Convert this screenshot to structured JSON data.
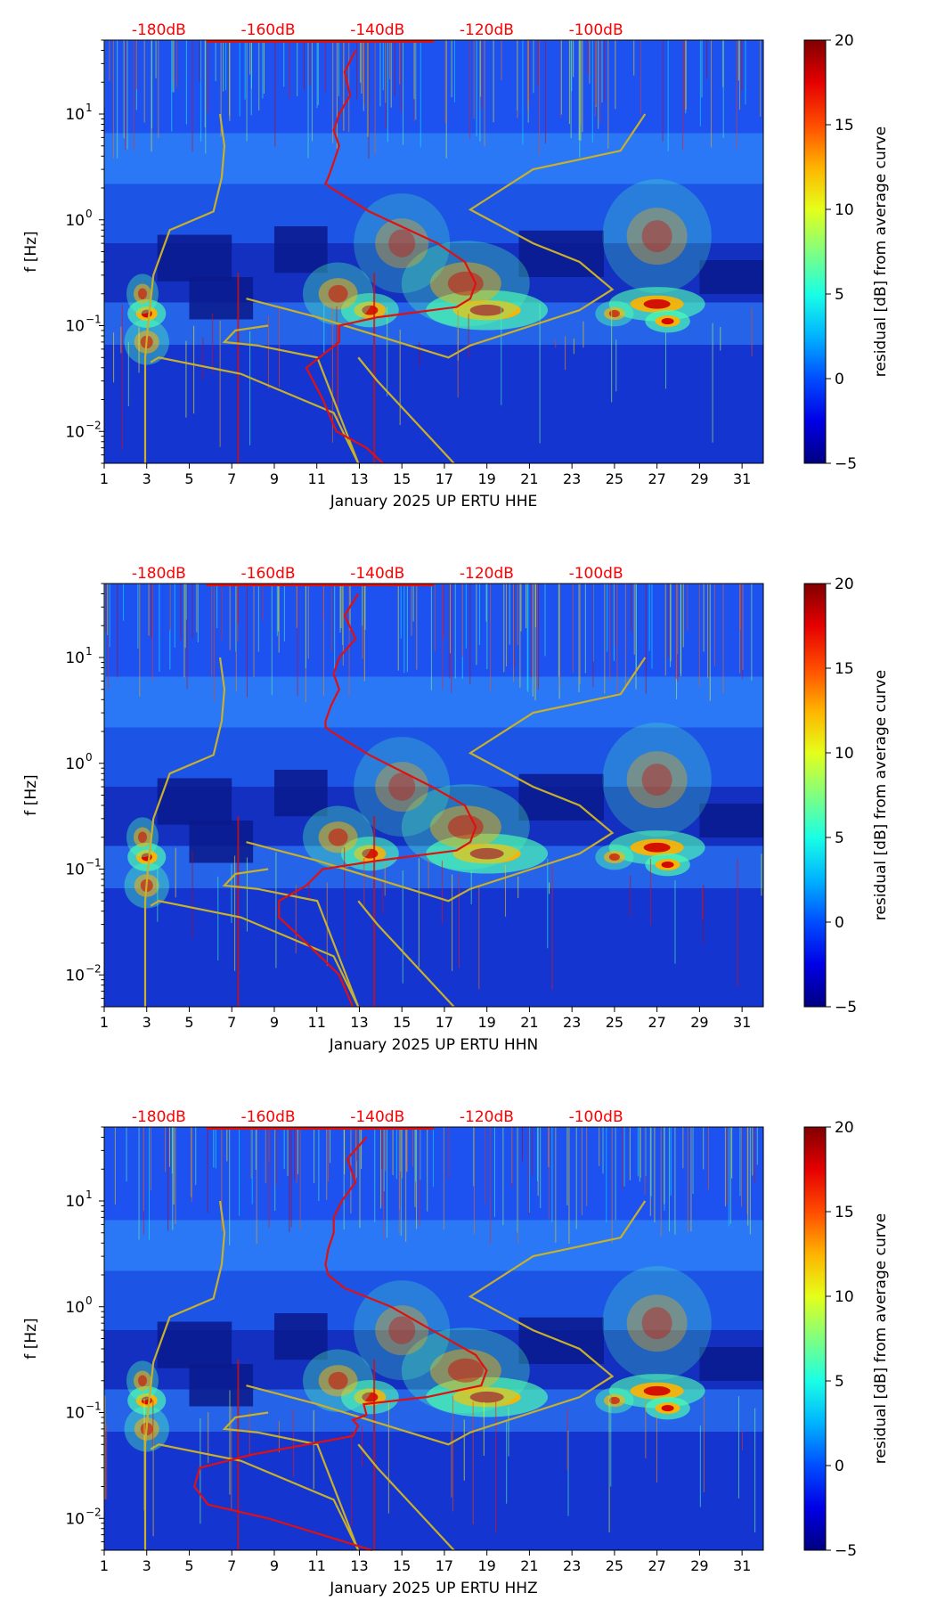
{
  "chart_data": [
    {
      "type": "heatmap",
      "channel": "HHE",
      "xlabel": "January 2025 UP ERTU  HHE",
      "ylabel": "f [Hz]",
      "x_ticks": [
        "1",
        "3",
        "5",
        "7",
        "9",
        "11",
        "13",
        "15",
        "17",
        "19",
        "21",
        "23",
        "25",
        "27",
        "29",
        "31"
      ],
      "y_ticks": [
        {
          "value": 0.01,
          "base": "10",
          "exp": "−2"
        },
        {
          "value": 0.1,
          "base": "10",
          "exp": "−1"
        },
        {
          "value": 1,
          "base": "10",
          "exp": "0"
        },
        {
          "value": 10,
          "base": "10",
          "exp": "1"
        }
      ],
      "xlim": [
        1,
        32
      ],
      "ylim": [
        0.005,
        50
      ],
      "top_axis": {
        "labels": [
          "-180dB",
          "-160dB",
          "-140dB",
          "-120dB",
          "-100dB"
        ],
        "values": [
          -180,
          -160,
          -140,
          -120,
          -100
        ],
        "color": "#ff0000"
      },
      "colorbar": {
        "label": "residual [dB] from average curve",
        "ticks": [
          "20",
          "15",
          "10",
          "5",
          "0",
          "−5"
        ],
        "range": [
          -5,
          20
        ],
        "colormap": "jet"
      },
      "series": [
        {
          "name": "noise-model-bounds",
          "color": "#c8b02a",
          "curves": [
            {
              "db": [
                -168.8,
                -168.0,
                -168.5,
                -170.0,
                -178.0,
                -181.0,
                -182.0,
                -182.5,
                -182.5
              ],
              "f": [
                10,
                5,
                2.5,
                1.2,
                0.8,
                0.3,
                0.1,
                0.05,
                0.005
              ]
            },
            {
              "db": [
                -160.0,
                -166.0,
                -168.0,
                -162.0,
                -151.0,
                -143.5,
                -148.0,
                -165.0,
                -180.0,
                -181.5
              ],
              "f": [
                0.1,
                0.09,
                0.07,
                0.065,
                0.05,
                0.005,
                0.015,
                0.035,
                0.05,
                0.045
              ]
            }
          ]
        },
        {
          "name": "noise-model-upper",
          "color": "#c8b02a",
          "curves": [
            {
              "db": [
                -91.0,
                -95.5,
                -111.5,
                -123.0,
                -111.5,
                -103.0,
                -97.0,
                -103.0,
                -123.0,
                -127.0,
                -151.0,
                -164.0
              ],
              "f": [
                10,
                4.5,
                3.0,
                1.25,
                0.6,
                0.4,
                0.22,
                0.14,
                0.065,
                0.05,
                0.12,
                0.18
              ]
            },
            {
              "db": [
                -143.5,
                -140.0,
                -126.0
              ],
              "f": [
                0.05,
                0.03,
                0.005
              ]
            }
          ]
        },
        {
          "name": "average-curve",
          "color": "#e01010",
          "points_db": [
            -144.0,
            -146.0,
            -145.0,
            -147.0,
            -148.0,
            -147.0,
            -148.0,
            -149.0,
            -149.5,
            -148.5,
            -141.5,
            -129.0,
            -124.0,
            -122.0,
            -123.0,
            -125.5,
            -140.0,
            -147.0,
            -147.0,
            -153.0,
            -150.0,
            -147.5,
            -142.0,
            -139.0
          ],
          "points_f": [
            40,
            25,
            15,
            10,
            7,
            5,
            3.5,
            2.5,
            2.2,
            2.0,
            1.2,
            0.6,
            0.4,
            0.25,
            0.18,
            0.15,
            0.12,
            0.1,
            0.07,
            0.04,
            0.02,
            0.01,
            0.007,
            0.005
          ]
        }
      ]
    },
    {
      "type": "heatmap",
      "channel": "HHN",
      "xlabel": "January 2025 UP ERTU  HHN",
      "ylabel": "f [Hz]",
      "x_ticks": [
        "1",
        "3",
        "5",
        "7",
        "9",
        "11",
        "13",
        "15",
        "17",
        "19",
        "21",
        "23",
        "25",
        "27",
        "29",
        "31"
      ],
      "y_ticks": [
        {
          "value": 0.01,
          "base": "10",
          "exp": "−2"
        },
        {
          "value": 0.1,
          "base": "10",
          "exp": "−1"
        },
        {
          "value": 1,
          "base": "10",
          "exp": "0"
        },
        {
          "value": 10,
          "base": "10",
          "exp": "1"
        }
      ],
      "xlim": [
        1,
        32
      ],
      "ylim": [
        0.005,
        50
      ],
      "top_axis": {
        "labels": [
          "-180dB",
          "-160dB",
          "-140dB",
          "-120dB",
          "-100dB"
        ],
        "values": [
          -180,
          -160,
          -140,
          -120,
          -100
        ],
        "color": "#ff0000"
      },
      "colorbar": {
        "label": "residual [dB] from average curve",
        "ticks": [
          "20",
          "15",
          "10",
          "5",
          "0",
          "−5"
        ],
        "range": [
          -5,
          20
        ],
        "colormap": "jet"
      },
      "series": [
        {
          "name": "noise-model-bounds",
          "color": "#c8b02a",
          "curves": [
            {
              "db": [
                -168.8,
                -168.0,
                -168.5,
                -170.0,
                -178.0,
                -181.0,
                -182.0,
                -182.5,
                -182.5
              ],
              "f": [
                10,
                5,
                2.5,
                1.2,
                0.8,
                0.3,
                0.1,
                0.05,
                0.005
              ]
            },
            {
              "db": [
                -160.0,
                -166.0,
                -168.0,
                -162.0,
                -151.0,
                -143.5,
                -148.0,
                -165.0,
                -180.0,
                -181.5
              ],
              "f": [
                0.1,
                0.09,
                0.07,
                0.065,
                0.05,
                0.005,
                0.015,
                0.035,
                0.05,
                0.045
              ]
            }
          ]
        },
        {
          "name": "noise-model-upper",
          "color": "#c8b02a",
          "curves": [
            {
              "db": [
                -91.0,
                -95.5,
                -111.5,
                -123.0,
                -111.5,
                -103.0,
                -97.0,
                -103.0,
                -123.0,
                -127.0,
                -151.0,
                -164.0
              ],
              "f": [
                10,
                4.5,
                3.0,
                1.25,
                0.6,
                0.4,
                0.22,
                0.14,
                0.065,
                0.05,
                0.12,
                0.18
              ]
            },
            {
              "db": [
                -143.5,
                -140.0,
                -126.0
              ],
              "f": [
                0.05,
                0.03,
                0.005
              ]
            }
          ]
        },
        {
          "name": "average-curve",
          "color": "#e01010",
          "points_db": [
            -143.5,
            -146.0,
            -144.0,
            -147.0,
            -148.0,
            -147.0,
            -148.5,
            -149.5,
            -149.5,
            -148.5,
            -141.5,
            -130.0,
            -124.0,
            -122.0,
            -123.0,
            -125.5,
            -140.0,
            -150.0,
            -153.0,
            -158.0,
            -158.0,
            -153.0,
            -147.0,
            -144.5
          ],
          "points_f": [
            40,
            25,
            15,
            10,
            7,
            5,
            3.5,
            2.5,
            2.2,
            2.0,
            1.2,
            0.6,
            0.4,
            0.25,
            0.18,
            0.15,
            0.12,
            0.1,
            0.07,
            0.05,
            0.035,
            0.02,
            0.01,
            0.005
          ]
        }
      ]
    },
    {
      "type": "heatmap",
      "channel": "HHZ",
      "xlabel": "January 2025 UP ERTU  HHZ",
      "ylabel": "f [Hz]",
      "x_ticks": [
        "1",
        "3",
        "5",
        "7",
        "9",
        "11",
        "13",
        "15",
        "17",
        "19",
        "21",
        "23",
        "25",
        "27",
        "29",
        "31"
      ],
      "y_ticks": [
        {
          "value": 0.01,
          "base": "10",
          "exp": "−2"
        },
        {
          "value": 0.1,
          "base": "10",
          "exp": "−1"
        },
        {
          "value": 1,
          "base": "10",
          "exp": "0"
        },
        {
          "value": 10,
          "base": "10",
          "exp": "1"
        }
      ],
      "xlim": [
        1,
        32
      ],
      "ylim": [
        0.005,
        50
      ],
      "top_axis": {
        "labels": [
          "-180dB",
          "-160dB",
          "-140dB",
          "-120dB",
          "-100dB"
        ],
        "values": [
          -180,
          -160,
          -140,
          -120,
          -100
        ],
        "color": "#ff0000"
      },
      "colorbar": {
        "label": "residual [dB] from average curve",
        "ticks": [
          "20",
          "15",
          "10",
          "5",
          "0",
          "−5"
        ],
        "range": [
          -5,
          20
        ],
        "colormap": "jet"
      },
      "series": [
        {
          "name": "noise-model-bounds",
          "color": "#c8b02a",
          "curves": [
            {
              "db": [
                -168.8,
                -168.0,
                -168.5,
                -170.0,
                -178.0,
                -181.0,
                -182.0,
                -182.5,
                -182.5
              ],
              "f": [
                10,
                5,
                2.5,
                1.2,
                0.8,
                0.3,
                0.1,
                0.05,
                0.005
              ]
            },
            {
              "db": [
                -160.0,
                -166.0,
                -168.0,
                -162.0,
                -151.0,
                -143.5,
                -148.0,
                -165.0,
                -180.0,
                -181.5
              ],
              "f": [
                0.1,
                0.09,
                0.07,
                0.065,
                0.05,
                0.005,
                0.015,
                0.035,
                0.05,
                0.045
              ]
            }
          ]
        },
        {
          "name": "noise-model-upper",
          "color": "#c8b02a",
          "curves": [
            {
              "db": [
                -91.0,
                -95.5,
                -111.5,
                -123.0,
                -111.5,
                -103.0,
                -97.0,
                -103.0,
                -123.0,
                -127.0,
                -151.0,
                -164.0
              ],
              "f": [
                10,
                4.5,
                3.0,
                1.25,
                0.6,
                0.4,
                0.22,
                0.14,
                0.065,
                0.05,
                0.12,
                0.18
              ]
            },
            {
              "db": [
                -143.5,
                -140.0,
                -126.0
              ],
              "f": [
                0.05,
                0.03,
                0.005
              ]
            }
          ]
        },
        {
          "name": "average-curve",
          "color": "#e01010",
          "points_db": [
            -142.0,
            -145.5,
            -144.0,
            -146.5,
            -148.0,
            -148.0,
            -149.0,
            -149.5,
            -149.0,
            -146.0,
            -137.5,
            -130.0,
            -122.0,
            -120.0,
            -121.0,
            -131.0,
            -142.5,
            -142.0,
            -144.5,
            -143.5,
            -144.5,
            -163.0,
            -172.5,
            -173.5,
            -171.0,
            -160.0,
            -141.0
          ],
          "points_f": [
            40,
            25,
            15,
            10,
            7,
            5,
            3.5,
            2.5,
            2.0,
            1.5,
            1.0,
            0.6,
            0.35,
            0.25,
            0.18,
            0.14,
            0.12,
            0.095,
            0.085,
            0.075,
            0.06,
            0.04,
            0.03,
            0.02,
            0.0135,
            0.01,
            0.005
          ]
        }
      ]
    }
  ]
}
